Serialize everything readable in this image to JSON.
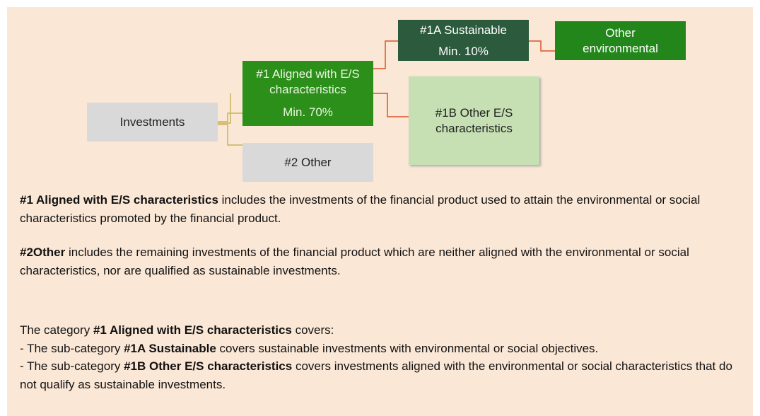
{
  "nodes": [
    {
      "label": "Investments"
    },
    {
      "label": "#1 Aligned with E/S characteristics",
      "share": "Min. 70%"
    },
    {
      "label": "#2 Other"
    },
    {
      "label": "#1A Sustainable",
      "share": "Min. 10%"
    },
    {
      "label": "Other environmental"
    },
    {
      "label": "#1B Other E/S characteristics"
    }
  ],
  "definitions": [
    {
      "term": "#1 Aligned with E/S characteristics",
      "text": " includes the investments of the financial product used to attain the environmental or social characteristics promoted by the financial product."
    },
    {
      "term": "#2Other",
      "text": " includes the remaining investments of the financial product which are neither aligned with the environmental or social characteristics, nor are qualified as sustainable investments."
    }
  ],
  "category": {
    "intro": [
      "The category ",
      "#1 Aligned with E/S characteristics",
      " covers:"
    ],
    "items": [
      [
        "- The sub-category ",
        "#1A Sustainable",
        " covers sustainable investments with environmental or social objectives."
      ],
      [
        "- The sub-category ",
        "#1B Other E/S characteristics",
        " covers investments aligned with the environmental or social characteristics that do not qualify as sustainable investments."
      ]
    ]
  }
}
